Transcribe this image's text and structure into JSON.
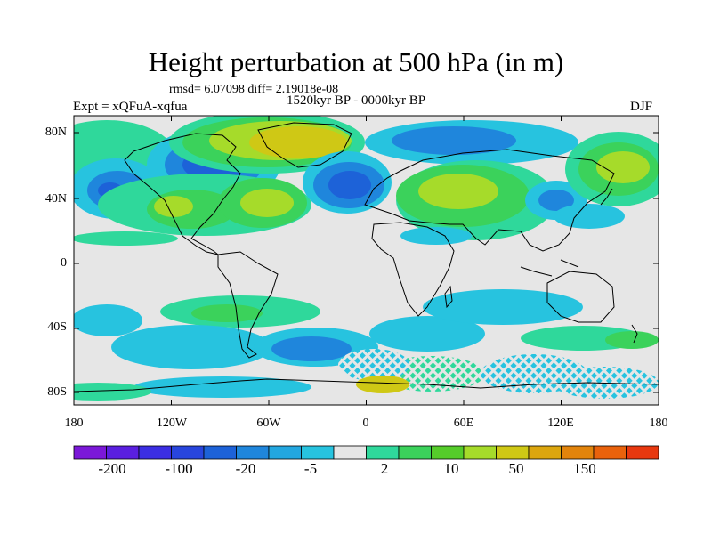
{
  "title": "Height perturbation at 500 hPa (in m)",
  "stats_line": "rmsd= 6.07098 diff= 2.19018e-08",
  "experiment": "Expt = xQFuA-xqfua",
  "period": "1520kyr BP - 0000kyr BP",
  "season": "DJF",
  "map": {
    "latitude_ticks": [
      "80N",
      "40N",
      "0",
      "40S",
      "80S"
    ],
    "longitude_ticks": [
      "180",
      "120W",
      "60W",
      "0",
      "60E",
      "120E",
      "180"
    ]
  },
  "colorbar": {
    "labels": [
      "-200",
      "-100",
      "-20",
      "-5",
      "2",
      "10",
      "50",
      "150"
    ],
    "colors": [
      "#7b18d8",
      "#5a1fe0",
      "#3b2ee3",
      "#2845dd",
      "#1d62d8",
      "#1f86dc",
      "#23a7e0",
      "#27c3df",
      "#e6e6e6",
      "#2fd89b",
      "#3bd25b",
      "#55cc2a",
      "#a6db2a",
      "#cfc815",
      "#dca60e",
      "#e2840c",
      "#e9620c",
      "#e8380f"
    ]
  },
  "colors": {
    "background_fill": "#e6e6e6",
    "coastline": "#000000"
  }
}
